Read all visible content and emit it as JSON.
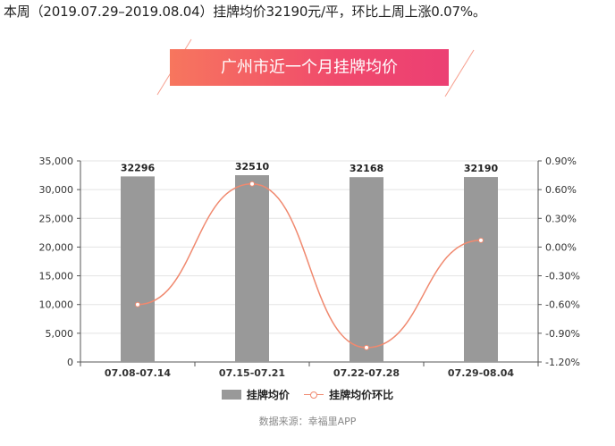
{
  "summary_text": "本周（2019.07.29–2019.08.04）挂牌均价32190元/平，环比上周上涨0.07%。",
  "banner_title": "广州市近一个月挂牌均价",
  "source_text": "数据来源：幸福里APP",
  "colors": {
    "bar": "#999999",
    "line": "#f0896f",
    "banner_start": "#f7765e",
    "banner_end": "#ec3f73"
  },
  "chart_data": {
    "type": "bar",
    "categories": [
      "07.08-07.14",
      "07.15-07.21",
      "07.22-07.28",
      "07.29-08.04"
    ],
    "series": [
      {
        "name": "挂牌均价",
        "type": "bar",
        "axis": "left",
        "values": [
          32296,
          32510,
          32168,
          32190
        ]
      },
      {
        "name": "挂牌均价环比",
        "type": "line",
        "axis": "right",
        "values": [
          -0.6,
          0.66,
          -1.05,
          0.07
        ]
      }
    ],
    "data_labels": [
      "32296",
      "32510",
      "32168",
      "32190"
    ],
    "y_left": {
      "ylim": [
        0,
        35000
      ],
      "ticks": [
        "0",
        "5,000",
        "10,000",
        "15,000",
        "20,000",
        "25,000",
        "30,000",
        "35,000"
      ]
    },
    "y_right": {
      "ylim": [
        -1.2,
        0.9
      ],
      "ticks": [
        "-1.20%",
        "-0.90%",
        "-0.60%",
        "-0.30%",
        "0.00%",
        "0.30%",
        "0.60%",
        "0.90%"
      ]
    },
    "grid": true,
    "legend_position": "bottom-center"
  }
}
